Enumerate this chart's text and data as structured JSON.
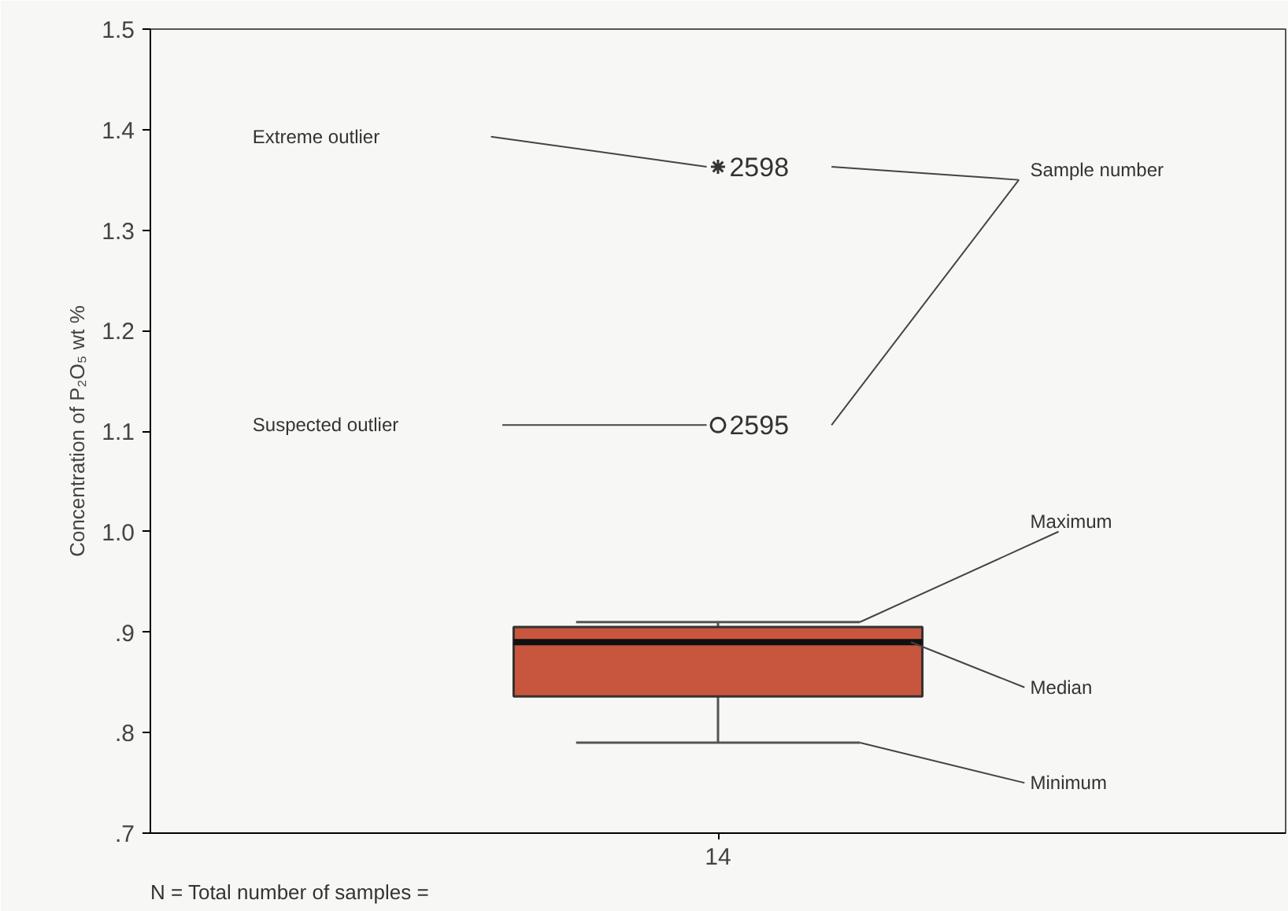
{
  "chart_data": {
    "type": "box",
    "categories": [
      "14"
    ],
    "ylabel": "Concentration of P₂O₅ wt %",
    "boxes": [
      {
        "low": 0.79,
        "q1": 0.836,
        "median": 0.89,
        "q3": 0.905,
        "high": 0.91,
        "outliers": [
          1.106,
          1.363
        ]
      }
    ],
    "colors": [
      "#c8553d"
    ],
    "ylim": [
      0.7,
      1.5
    ],
    "yticks": [
      {
        "value": 0.7,
        "label": ".7"
      },
      {
        "value": 0.8,
        "label": ".8"
      },
      {
        "value": 0.9,
        "label": ".9"
      },
      {
        "value": 1.0,
        "label": "1.0"
      },
      1.1,
      1.2,
      1.3,
      1.4,
      1.5
    ],
    "annotations": [
      "Extreme outlier",
      "2598",
      "Suspected outlier",
      "2595",
      "Sample number",
      "Maximum",
      "Median",
      "Minimum",
      "N =  Total number of samples  ="
    ],
    "grid": false
  }
}
